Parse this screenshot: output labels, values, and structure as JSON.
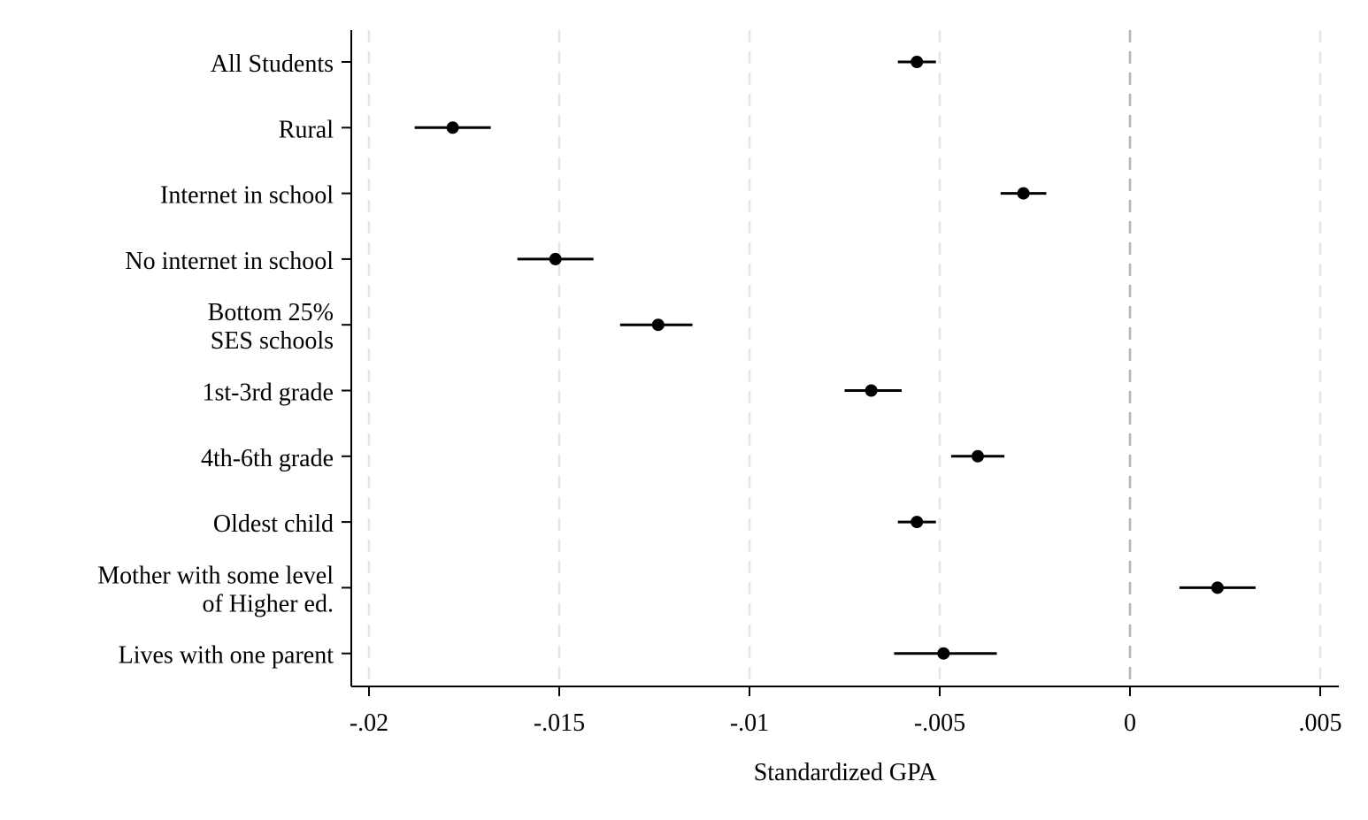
{
  "chart_data": {
    "type": "scatter",
    "subtype": "coefficient-plot-horizontal",
    "title": "",
    "xlabel": "Standardized GPA",
    "ylabel": "",
    "xlim": [
      -0.0205,
      0.0055
    ],
    "xticks": [
      -0.02,
      -0.015,
      -0.01,
      -0.005,
      0,
      0.005
    ],
    "xtick_labels": [
      "-.02",
      "-.015",
      "-.01",
      "-.005",
      "0",
      ".005"
    ],
    "grid": "vertical dashed",
    "reference_line": 0,
    "colors": {
      "marker": "#000000",
      "grid": "#e6e6e6",
      "reference_line": "#b4b4b4"
    },
    "categories": [
      {
        "label_lines": [
          "All Students"
        ],
        "estimate": -0.0056,
        "ci": [
          -0.0061,
          -0.0051
        ]
      },
      {
        "label_lines": [
          "Rural"
        ],
        "estimate": -0.0178,
        "ci": [
          -0.0188,
          -0.0168
        ]
      },
      {
        "label_lines": [
          "Internet in school"
        ],
        "estimate": -0.0028,
        "ci": [
          -0.0034,
          -0.0022
        ]
      },
      {
        "label_lines": [
          "No internet in school"
        ],
        "estimate": -0.0151,
        "ci": [
          -0.0161,
          -0.0141
        ]
      },
      {
        "label_lines": [
          "Bottom 25%",
          "SES schools"
        ],
        "estimate": -0.0124,
        "ci": [
          -0.0134,
          -0.0115
        ]
      },
      {
        "label_lines": [
          "1st-3rd grade"
        ],
        "estimate": -0.0068,
        "ci": [
          -0.0075,
          -0.006
        ]
      },
      {
        "label_lines": [
          "4th-6th grade"
        ],
        "estimate": -0.004,
        "ci": [
          -0.0047,
          -0.0033
        ]
      },
      {
        "label_lines": [
          "Oldest child"
        ],
        "estimate": -0.0056,
        "ci": [
          -0.0061,
          -0.0051
        ]
      },
      {
        "label_lines": [
          "Mother with some level",
          "of Higher ed."
        ],
        "estimate": 0.0023,
        "ci": [
          0.0013,
          0.0033
        ]
      },
      {
        "label_lines": [
          "Lives with one parent"
        ],
        "estimate": -0.0049,
        "ci": [
          -0.0062,
          -0.0035
        ]
      }
    ]
  }
}
